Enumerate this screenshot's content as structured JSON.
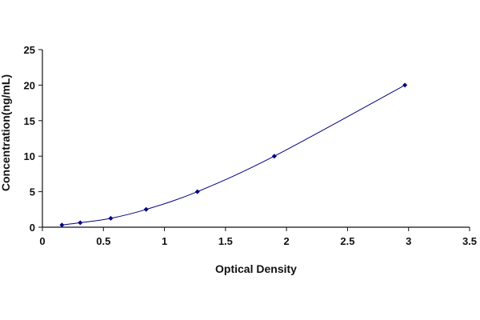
{
  "chart_data": {
    "type": "scatter",
    "title": "",
    "xlabel": "Optical Density",
    "ylabel": "Concentration(ng/mL)",
    "xlim": [
      0,
      3.5
    ],
    "ylim": [
      0,
      25
    ],
    "x_ticks": [
      "0",
      "0.5",
      "1",
      "1.5",
      "2",
      "2.5",
      "3",
      "3.5"
    ],
    "y_ticks": [
      "0",
      "5",
      "10",
      "15",
      "20",
      "25"
    ],
    "x_tick_values": [
      0,
      0.5,
      1,
      1.5,
      2,
      2.5,
      3,
      3.5
    ],
    "y_tick_values": [
      0,
      5,
      10,
      15,
      20,
      25
    ],
    "grid": false,
    "series": [
      {
        "points": [
          {
            "x": 0.16,
            "y": 0.31
          },
          {
            "x": 0.31,
            "y": 0.63
          },
          {
            "x": 0.56,
            "y": 1.25
          },
          {
            "x": 0.85,
            "y": 2.5
          },
          {
            "x": 1.27,
            "y": 5
          },
          {
            "x": 1.9,
            "y": 10
          },
          {
            "x": 2.97,
            "y": 20
          }
        ],
        "trendline": "smooth-fit",
        "color": "#000080"
      }
    ],
    "colors": {
      "axis": "#111111",
      "series": "#000080"
    }
  }
}
